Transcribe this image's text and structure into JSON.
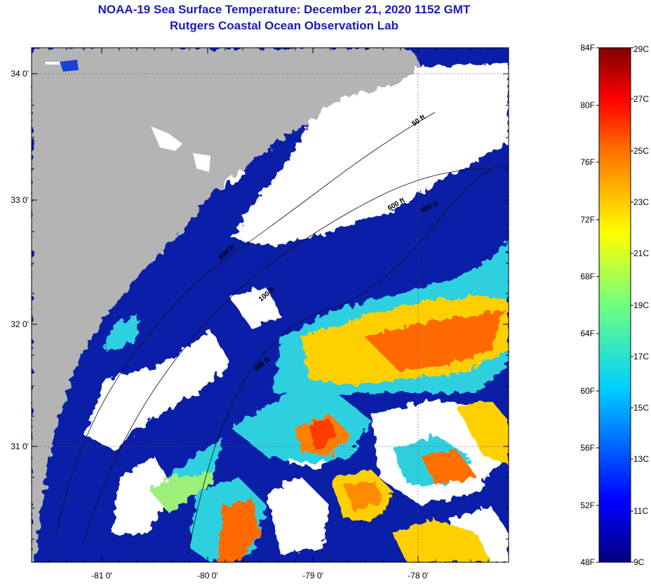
{
  "title": {
    "line1": "NOAA-19 Sea Surface Temperature:  December 21, 2020 1152 GMT",
    "line2": "Rutgers Coastal Ocean Observation Lab"
  },
  "map": {
    "lon_labels": [
      "-81 0'",
      "-80 0'",
      "-79 0'",
      "-78 0'"
    ],
    "lat_labels": [
      "34 0'",
      "33 0'",
      "32 0'",
      "31 0'"
    ],
    "contour_labels": [
      "50 ft",
      "100 ft",
      "300 ft",
      "600 ft",
      "600 ft",
      "600 ft"
    ],
    "colors": {
      "land": "#b4b4b4",
      "cloud": "#ffffff",
      "cold_water": "#0a1ea8"
    }
  },
  "colorbar": {
    "fahrenheit_labels": [
      "84F",
      "80F",
      "76F",
      "72F",
      "68F",
      "64F",
      "60F",
      "56F",
      "52F",
      "48F"
    ],
    "celsius_labels": [
      "29C",
      "27C",
      "25C",
      "23C",
      "21C",
      "19C",
      "17C",
      "15C",
      "13C",
      "11C",
      "9C"
    ],
    "range_f": [
      48,
      84
    ],
    "range_c": [
      9,
      29
    ]
  }
}
